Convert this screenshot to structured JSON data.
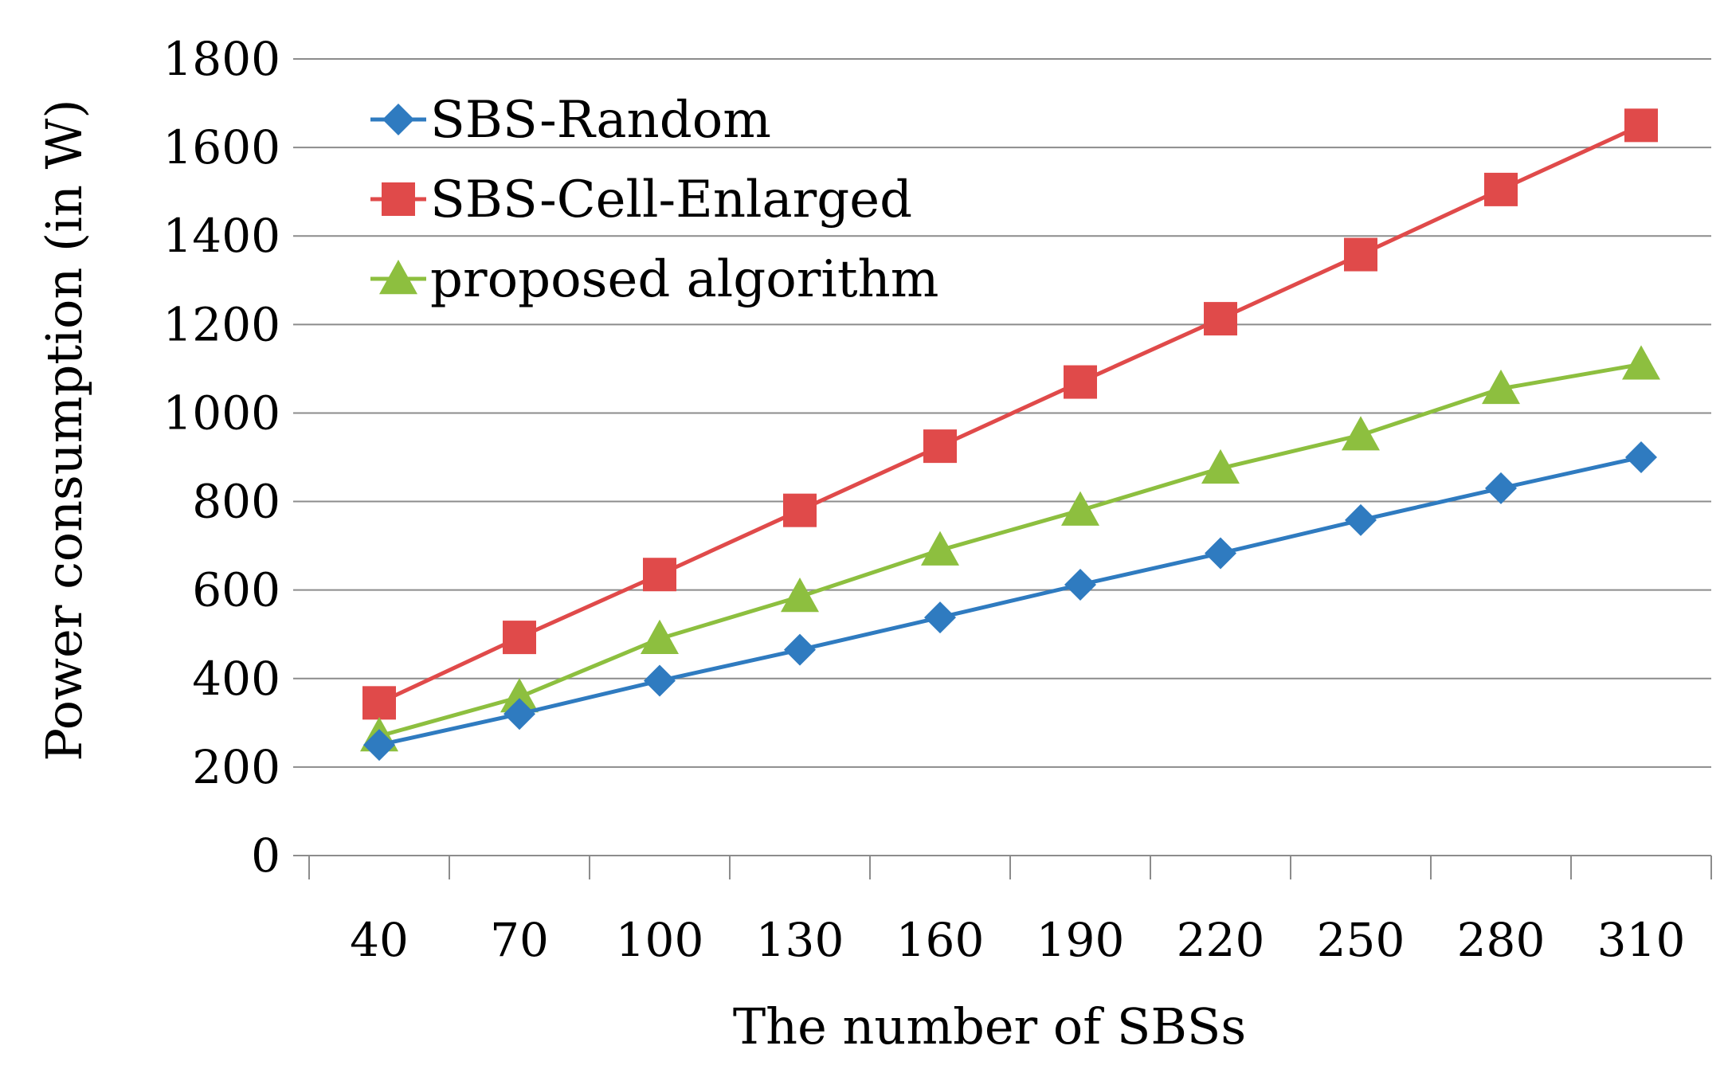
{
  "chart_data": {
    "type": "line",
    "title": "",
    "xlabel": "The number of SBSs",
    "ylabel": "Power consumption (in W)",
    "categories": [
      "40",
      "70",
      "100",
      "130",
      "160",
      "190",
      "220",
      "250",
      "280",
      "310"
    ],
    "ylim": [
      0,
      1800
    ],
    "yticks": [
      "0",
      "200",
      "400",
      "600",
      "800",
      "1000",
      "1200",
      "1400",
      "1600",
      "1800"
    ],
    "ytick_values": [
      0,
      200,
      400,
      600,
      800,
      1000,
      1200,
      1400,
      1600,
      1800
    ],
    "grid": true,
    "legend_position": "top-left",
    "series": [
      {
        "name": "SBS-Random",
        "marker": "diamond",
        "color": "#2F7BC0",
        "values": [
          250,
          320,
          395,
          465,
          538,
          612,
          683,
          758,
          830,
          900
        ]
      },
      {
        "name": "SBS-Cell-Enlarged",
        "marker": "square",
        "color": "#E04A4A",
        "values": [
          345,
          493,
          635,
          780,
          925,
          1070,
          1213,
          1358,
          1505,
          1650
        ]
      },
      {
        "name": "proposed algorithm",
        "marker": "triangle",
        "color": "#8DBF3F",
        "values": [
          270,
          358,
          490,
          585,
          690,
          780,
          875,
          950,
          1055,
          1110
        ]
      }
    ]
  }
}
